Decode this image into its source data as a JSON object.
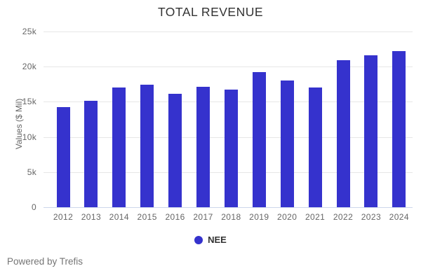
{
  "chart_data": {
    "type": "bar",
    "title": "TOTAL REVENUE",
    "xlabel": "",
    "ylabel": "Values ($ Mil)",
    "categories": [
      "2012",
      "2013",
      "2014",
      "2015",
      "2016",
      "2017",
      "2018",
      "2019",
      "2020",
      "2021",
      "2022",
      "2023",
      "2024"
    ],
    "series": [
      {
        "name": "NEE",
        "values": [
          14200,
          15100,
          17000,
          17450,
          16150,
          17150,
          16700,
          19200,
          18000,
          17050,
          20950,
          21600,
          22200
        ],
        "color": "#3532cd"
      }
    ],
    "ylim": [
      0,
      25000
    ],
    "ytick_interval": 5000,
    "ytick_labels": [
      "0",
      "5k",
      "10k",
      "15k",
      "20k",
      "25k"
    ],
    "grid": true,
    "legend_position": "bottom-center"
  },
  "footer": {
    "powered_by": "Powered by Trefis"
  },
  "colors": {
    "bar": "#3532cd",
    "title_text": "#333333",
    "axis_text": "#666666",
    "gridline": "#e6e6e6",
    "axis_line": "#ccd6eb",
    "footer_text": "#757575"
  }
}
